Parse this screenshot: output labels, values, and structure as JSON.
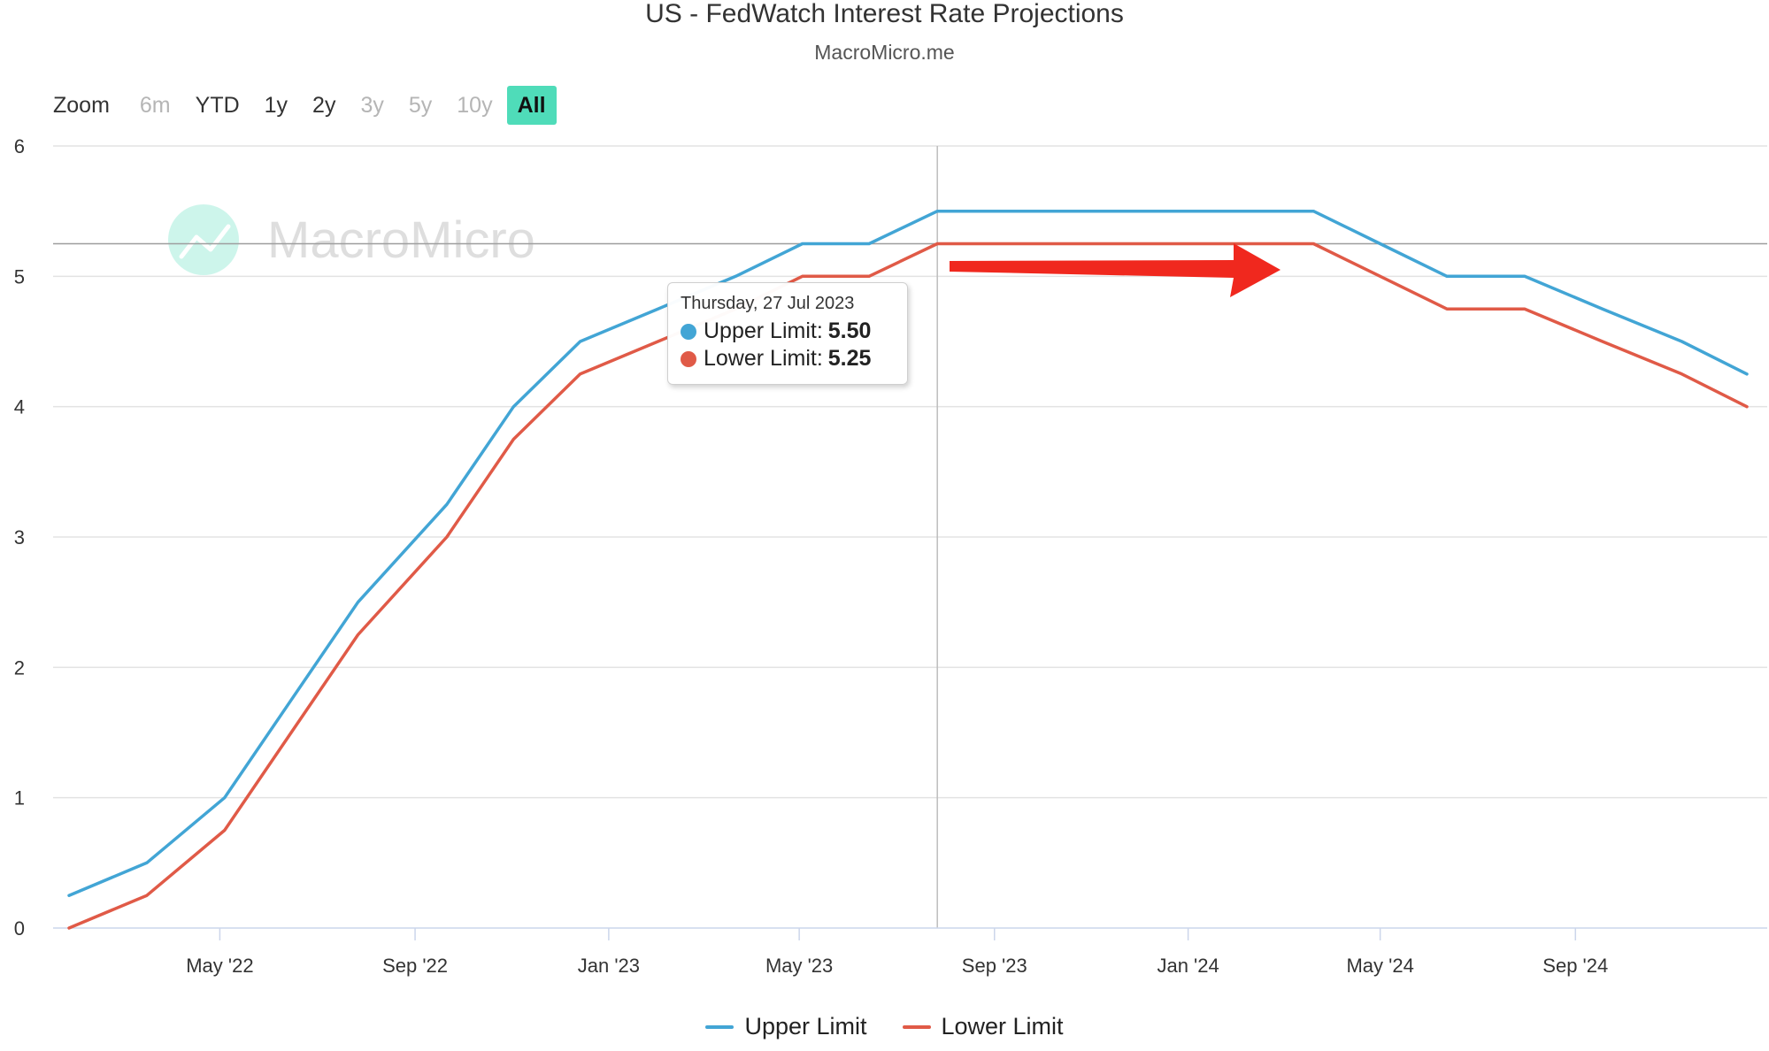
{
  "header": {
    "title": "US - FedWatch Interest Rate Projections",
    "subtitle": "MacroMicro.me"
  },
  "zoom": {
    "label": "Zoom",
    "buttons": [
      {
        "label": "6m",
        "state": "disabled"
      },
      {
        "label": "YTD",
        "state": "enabled"
      },
      {
        "label": "1y",
        "state": "enabled"
      },
      {
        "label": "2y",
        "state": "enabled"
      },
      {
        "label": "3y",
        "state": "disabled"
      },
      {
        "label": "5y",
        "state": "disabled"
      },
      {
        "label": "10y",
        "state": "disabled"
      },
      {
        "label": "All",
        "state": "active"
      }
    ]
  },
  "watermark": {
    "text": "MacroMicro"
  },
  "tooltip": {
    "date": "Thursday, 27 Jul 2023",
    "rows": [
      {
        "label": "Upper Limit:",
        "value": "5.50",
        "color": "#42a5d5"
      },
      {
        "label": "Lower Limit:",
        "value": "5.25",
        "color": "#e05a47"
      }
    ]
  },
  "colors": {
    "upper": "#42a5d5",
    "lower": "#e05a47",
    "arrow": "#f0281e",
    "accent": "#4fdcb9"
  },
  "chart_data": {
    "type": "line",
    "title": "US - FedWatch Interest Rate Projections",
    "subtitle": "MacroMicro.me",
    "ylim": [
      0,
      6
    ],
    "yticks": [
      "0",
      "1",
      "2",
      "3",
      "4",
      "5",
      "6"
    ],
    "xticks": [
      {
        "date": "2022-05-01",
        "label": "May '22"
      },
      {
        "date": "2022-09-01",
        "label": "Sep '22"
      },
      {
        "date": "2023-01-01",
        "label": "Jan '23"
      },
      {
        "date": "2023-05-01",
        "label": "May '23"
      },
      {
        "date": "2023-09-01",
        "label": "Sep '23"
      },
      {
        "date": "2024-01-01",
        "label": "Jan '24"
      },
      {
        "date": "2024-05-01",
        "label": "May '24"
      },
      {
        "date": "2024-09-01",
        "label": "Sep '24"
      }
    ],
    "xlim": [
      "2022-01-26",
      "2024-12-18"
    ],
    "grid": true,
    "legend_position": "bottom-center",
    "crosshair_date": "2023-07-27",
    "reference_value": 5.25,
    "x": [
      "2022-01-26",
      "2022-03-16",
      "2022-05-04",
      "2022-06-15",
      "2022-07-27",
      "2022-09-21",
      "2022-11-02",
      "2022-12-14",
      "2023-02-01",
      "2023-03-22",
      "2023-05-03",
      "2023-06-14",
      "2023-07-27",
      "2023-09-20",
      "2023-11-01",
      "2023-12-13",
      "2024-01-31",
      "2024-03-20",
      "2024-05-01",
      "2024-06-12",
      "2024-07-31",
      "2024-09-18",
      "2024-11-07",
      "2024-12-18"
    ],
    "series": [
      {
        "name": "Upper Limit",
        "color": "#42a5d5",
        "values": [
          0.25,
          0.5,
          1.0,
          1.75,
          2.5,
          3.25,
          4.0,
          4.5,
          4.75,
          5.0,
          5.25,
          5.25,
          5.5,
          5.5,
          5.5,
          5.5,
          5.5,
          5.5,
          5.25,
          5.0,
          5.0,
          4.75,
          4.5,
          4.25
        ]
      },
      {
        "name": "Lower Limit",
        "color": "#e05a47",
        "values": [
          0.0,
          0.25,
          0.75,
          1.5,
          2.25,
          3.0,
          3.75,
          4.25,
          4.5,
          4.75,
          5.0,
          5.0,
          5.25,
          5.25,
          5.25,
          5.25,
          5.25,
          5.25,
          5.0,
          4.75,
          4.75,
          4.5,
          4.25,
          4.0
        ]
      }
    ]
  }
}
